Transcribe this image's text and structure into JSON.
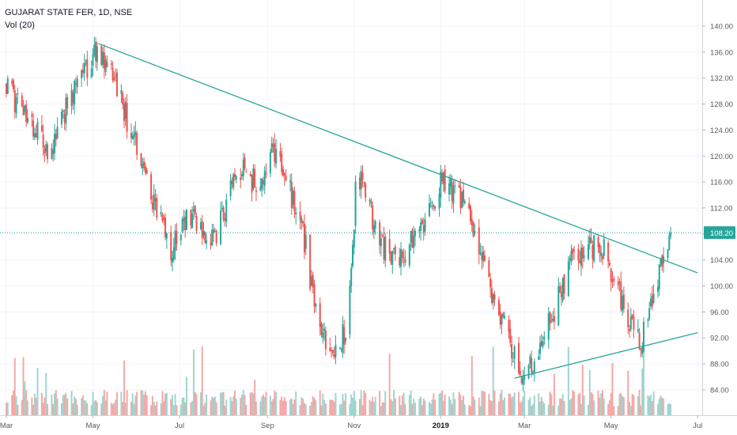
{
  "header": {
    "symbol_label": "GUJARAT STATE FER, 1D, NSE",
    "volume_label": "Vol (20)"
  },
  "price_scale": {
    "ticks": [
      "140.00",
      "136.00",
      "132.00",
      "128.00",
      "124.00",
      "120.00",
      "116.00",
      "112.00",
      "108.00",
      "104.00",
      "100.00",
      "96.00",
      "92.00",
      "88.00",
      "84.00"
    ]
  },
  "time_scale": {
    "ticks": [
      "Mar",
      "May",
      "Jul",
      "Sep",
      "Nov",
      "2019",
      "Mar",
      "May",
      "Jul"
    ]
  },
  "colors": {
    "up": "#26a69a",
    "down": "#ef5350",
    "up_volume": "#9fd5cf",
    "down_volume": "#f4a9a7",
    "trendline": "#26a69a",
    "last_price_badge": "#26a69a",
    "grid": "#f0f3fa"
  },
  "chart_data": {
    "type": "candlestick",
    "x_range": [
      "2018-03-01",
      "2019-07-02"
    ],
    "ylim": [
      82,
      142
    ],
    "last_price": "108.20",
    "key_points": [
      {
        "date": "2018-03-01",
        "price": 131
      },
      {
        "date": "2018-04-01",
        "price": 120
      },
      {
        "date": "2018-04-15",
        "price": 129
      },
      {
        "date": "2018-05-05",
        "price": 137
      },
      {
        "date": "2018-05-20",
        "price": 129
      },
      {
        "date": "2018-06-10",
        "price": 115
      },
      {
        "date": "2018-06-25",
        "price": 106
      },
      {
        "date": "2018-07-08",
        "price": 111
      },
      {
        "date": "2018-07-25",
        "price": 107
      },
      {
        "date": "2018-08-12",
        "price": 118
      },
      {
        "date": "2018-08-28",
        "price": 115
      },
      {
        "date": "2018-09-05",
        "price": 121
      },
      {
        "date": "2018-09-25",
        "price": 110
      },
      {
        "date": "2018-10-05",
        "price": 96
      },
      {
        "date": "2018-10-18",
        "price": 89
      },
      {
        "date": "2018-10-28",
        "price": 94
      },
      {
        "date": "2018-11-03",
        "price": 118
      },
      {
        "date": "2018-11-20",
        "price": 106
      },
      {
        "date": "2018-12-05",
        "price": 104
      },
      {
        "date": "2018-12-20",
        "price": 110
      },
      {
        "date": "2019-01-02",
        "price": 116
      },
      {
        "date": "2019-01-20",
        "price": 112
      },
      {
        "date": "2019-02-10",
        "price": 96
      },
      {
        "date": "2019-03-01",
        "price": 86
      },
      {
        "date": "2019-03-15",
        "price": 92
      },
      {
        "date": "2019-04-05",
        "price": 105
      },
      {
        "date": "2019-04-25",
        "price": 106
      },
      {
        "date": "2019-05-12",
        "price": 96
      },
      {
        "date": "2019-05-22",
        "price": 91
      },
      {
        "date": "2019-06-02",
        "price": 101
      },
      {
        "date": "2019-06-12",
        "price": 108.2
      }
    ],
    "trendlines": [
      {
        "from": {
          "date": "2018-05-05",
          "price": 137.3
        },
        "to": {
          "date": "2019-07-01",
          "price": 102
        }
      },
      {
        "from": {
          "date": "2019-02-22",
          "price": 85.8
        },
        "to": {
          "date": "2019-07-01",
          "price": 92.8
        }
      }
    ],
    "volume_range": [
      0,
      1
    ]
  }
}
